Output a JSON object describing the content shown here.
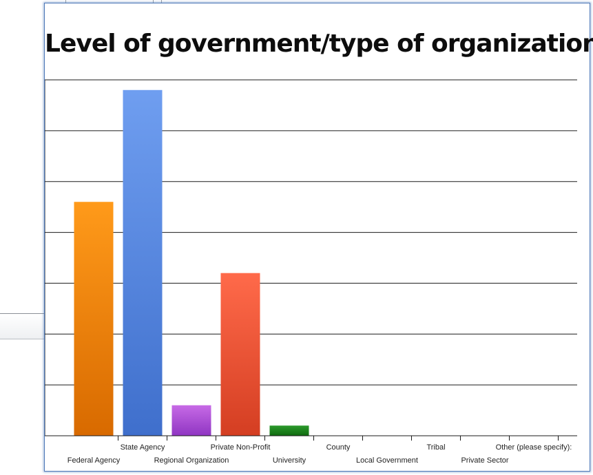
{
  "chart_data": {
    "type": "bar",
    "title": "Level of government/type of organization",
    "xlabel": "",
    "ylabel": "",
    "ylim": [
      0,
      35
    ],
    "yticks": [
      0,
      5,
      10,
      15,
      20,
      25,
      30,
      35
    ],
    "grid": true,
    "legend": "none",
    "categories": [
      "Federal Agency",
      "State Agency",
      "Regional Organization",
      "Private Non-Profit",
      "University",
      "County",
      "Local Government",
      "Tribal",
      "Private Sector",
      "Other (please specify):"
    ],
    "values": [
      23,
      34,
      3,
      16,
      1,
      0,
      0,
      0,
      0,
      0
    ],
    "bar_colors": [
      [
        "#ff9a1a",
        "#d86a00"
      ],
      [
        "#6f9ef0",
        "#3f6fcc"
      ],
      [
        "#c76ae6",
        "#8f35c2"
      ],
      [
        "#ff6a4a",
        "#d43e22"
      ],
      [
        "#2c9a2c",
        "#0f6a0f"
      ],
      [
        "#999999",
        "#777777"
      ],
      [
        "#999999",
        "#777777"
      ],
      [
        "#999999",
        "#777777"
      ],
      [
        "#999999",
        "#777777"
      ],
      [
        "#999999",
        "#777777"
      ]
    ]
  }
}
